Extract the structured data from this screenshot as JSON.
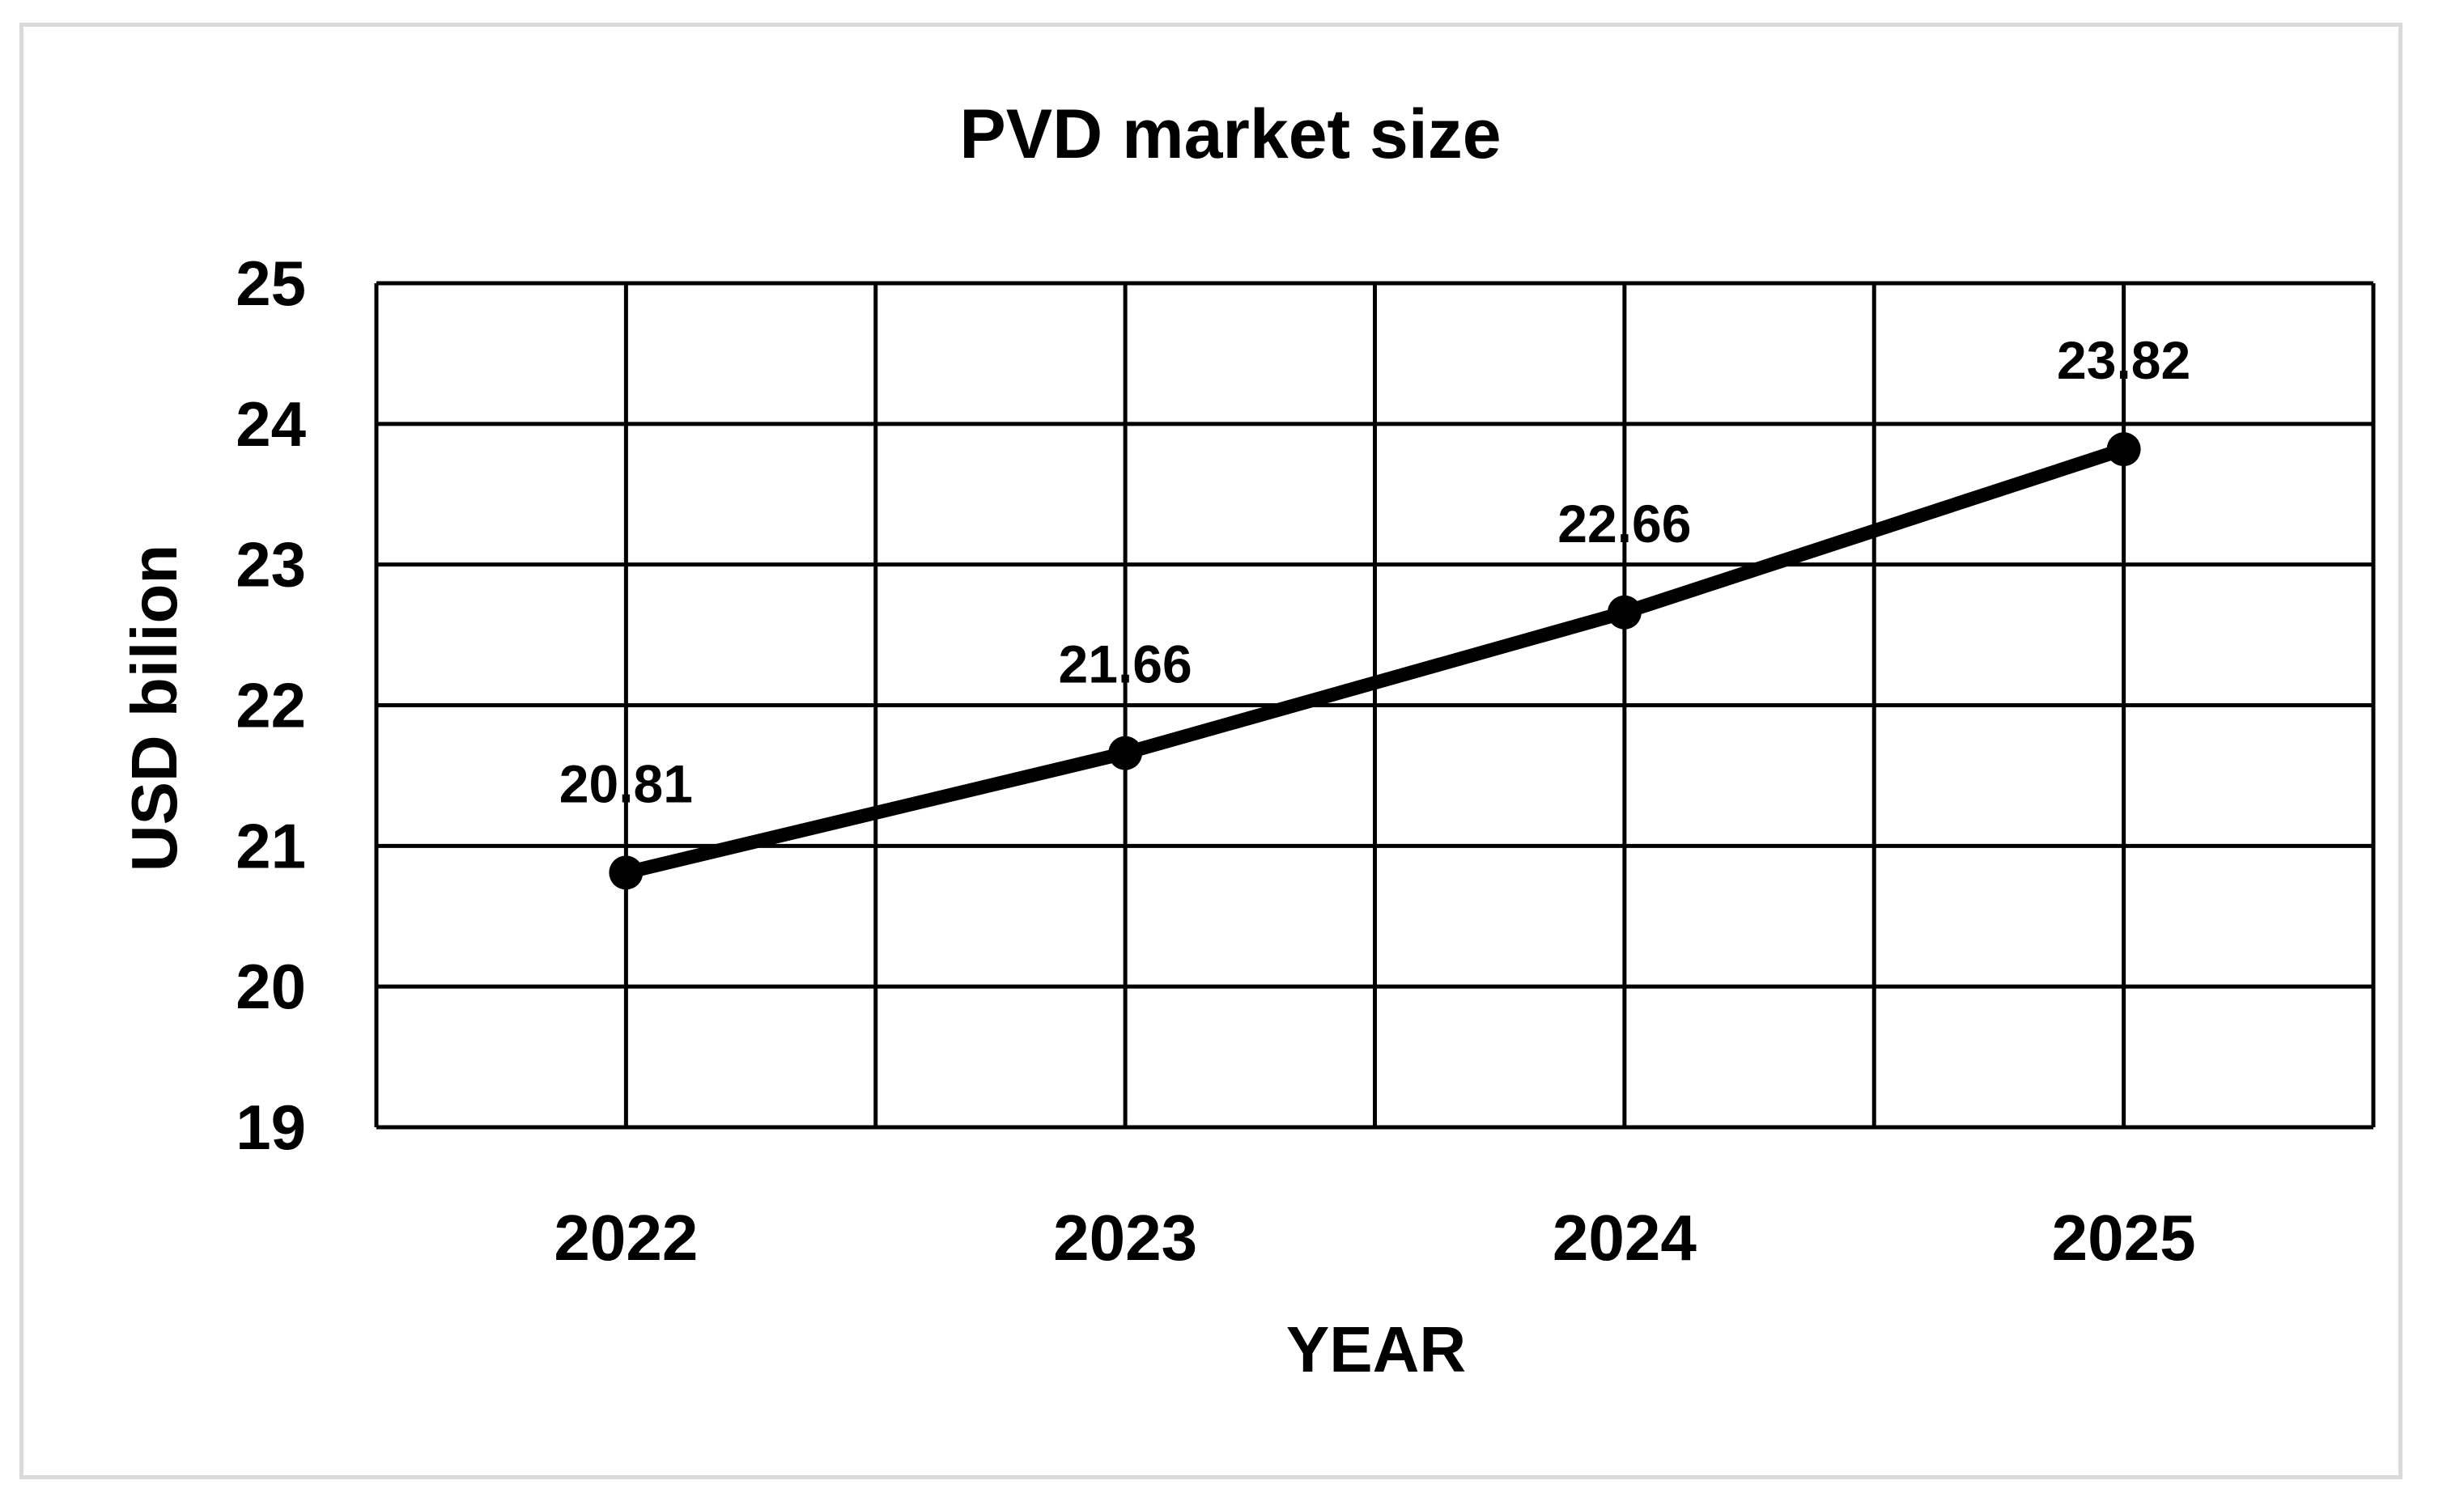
{
  "chart_data": {
    "type": "line",
    "title": "PVD market size",
    "xlabel": "YEAR",
    "ylabel": "USD bilion",
    "categories": [
      "2022",
      "2023",
      "2024",
      "2025"
    ],
    "series": [
      {
        "values": [
          20.81,
          21.66,
          22.66,
          23.82
        ],
        "data_labels": [
          "20.81",
          "21.66",
          "22.66",
          "23.82"
        ]
      }
    ],
    "ylim": [
      19,
      25
    ],
    "y_ticks": [
      "19",
      "20",
      "21",
      "22",
      "23",
      "24",
      "25"
    ],
    "grid": true,
    "colors": {
      "line": "#000000",
      "grid": "#000000",
      "frame": "#d9d9d9"
    }
  }
}
